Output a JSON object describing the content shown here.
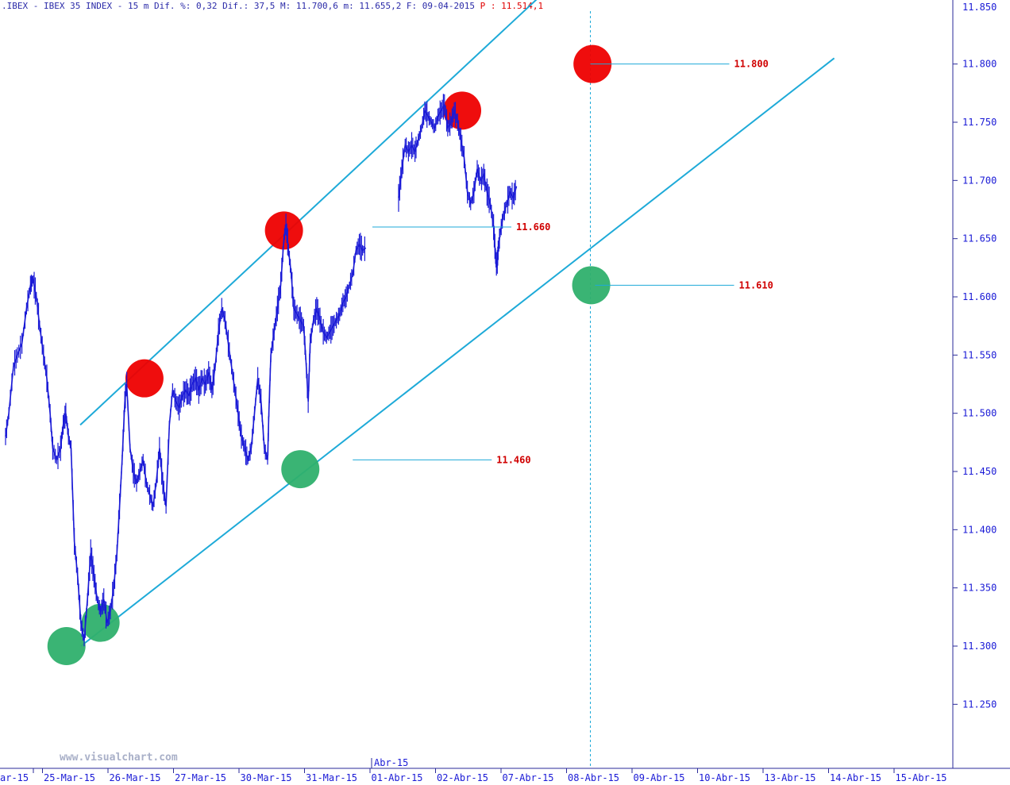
{
  "header": {
    "text": ".IBEX - IBEX 35 INDEX -  15 m Dif. %: 0,32 Dif.: 37,5 M: 11.700,6 m: 11.655,2 F: 09-04-2015",
    "last_price_text": "P : 11.514,1"
  },
  "watermark": "www.visualchart.com",
  "colors": {
    "price": "#1a1ad6",
    "channel": "#1eaad8",
    "resistance": "#ee0000",
    "support": "#2fb06d",
    "axis_text": "#1a1ad6",
    "level_label": "#d00000"
  },
  "chart_data": {
    "type": "line",
    "title": "IBEX 35 INDEX 15 m",
    "x_axis": {
      "labels": [
        "ar-15",
        "25-Mar-15",
        "26-Mar-15",
        "27-Mar-15",
        "30-Mar-15",
        "31-Mar-15",
        "01-Abr-15",
        "02-Abr-15",
        "07-Abr-15",
        "08-Abr-15",
        "09-Abr-15",
        "10-Abr-15",
        "13-Abr-15",
        "14-Abr-15",
        "15-Abr-15"
      ],
      "month_marker": "Abr-15"
    },
    "y_axis": {
      "ticks": [
        "11.250",
        "11.300",
        "11.350",
        "11.400",
        "11.450",
        "11.500",
        "11.550",
        "11.600",
        "11.650",
        "11.700",
        "11.750",
        "11.800"
      ],
      "top_partial": "11.850",
      "range": [
        11195,
        11855
      ]
    },
    "series": [
      {
        "points": [
          [
            0.0,
            11480
          ],
          [
            0.05,
            11500
          ],
          [
            0.12,
            11540
          ],
          [
            0.18,
            11550
          ],
          [
            0.25,
            11560
          ],
          [
            0.32,
            11590
          ],
          [
            0.38,
            11610
          ],
          [
            0.42,
            11615
          ],
          [
            0.47,
            11600
          ],
          [
            0.52,
            11575
          ],
          [
            0.58,
            11550
          ],
          [
            0.63,
            11530
          ],
          [
            0.68,
            11500
          ],
          [
            0.72,
            11470
          ],
          [
            0.78,
            11460
          ],
          [
            0.84,
            11470
          ],
          [
            0.88,
            11490
          ],
          [
            0.92,
            11500
          ],
          [
            0.96,
            11480
          ],
          [
            1.0,
            11470
          ],
          [
            1.05,
            11390
          ],
          [
            1.1,
            11360
          ],
          [
            1.15,
            11320
          ],
          [
            1.2,
            11305
          ],
          [
            1.25,
            11340
          ],
          [
            1.3,
            11380
          ],
          [
            1.35,
            11360
          ],
          [
            1.4,
            11340
          ],
          [
            1.45,
            11330
          ],
          [
            1.5,
            11340
          ],
          [
            1.55,
            11320
          ],
          [
            1.6,
            11330
          ],
          [
            1.65,
            11350
          ],
          [
            1.7,
            11380
          ],
          [
            1.74,
            11420
          ],
          [
            1.78,
            11460
          ],
          [
            1.82,
            11510
          ],
          [
            1.85,
            11525
          ],
          [
            1.9,
            11470
          ],
          [
            1.95,
            11450
          ],
          [
            2.0,
            11440
          ],
          [
            2.05,
            11450
          ],
          [
            2.1,
            11460
          ],
          [
            2.15,
            11440
          ],
          [
            2.2,
            11430
          ],
          [
            2.25,
            11420
          ],
          [
            2.3,
            11440
          ],
          [
            2.35,
            11470
          ],
          [
            2.4,
            11440
          ],
          [
            2.45,
            11420
          ],
          [
            2.5,
            11490
          ],
          [
            2.55,
            11520
          ],
          [
            2.6,
            11510
          ],
          [
            2.65,
            11505
          ],
          [
            2.7,
            11515
          ],
          [
            2.75,
            11520
          ],
          [
            2.8,
            11515
          ],
          [
            2.85,
            11525
          ],
          [
            2.9,
            11530
          ],
          [
            2.95,
            11520
          ],
          [
            3.0,
            11530
          ],
          [
            3.05,
            11525
          ],
          [
            3.1,
            11535
          ],
          [
            3.15,
            11520
          ],
          [
            3.2,
            11540
          ],
          [
            3.25,
            11570
          ],
          [
            3.3,
            11590
          ],
          [
            3.35,
            11580
          ],
          [
            3.4,
            11560
          ],
          [
            3.45,
            11540
          ],
          [
            3.5,
            11520
          ],
          [
            3.55,
            11500
          ],
          [
            3.6,
            11480
          ],
          [
            3.65,
            11470
          ],
          [
            3.7,
            11460
          ],
          [
            3.75,
            11470
          ],
          [
            3.8,
            11500
          ],
          [
            3.85,
            11530
          ],
          [
            3.9,
            11510
          ],
          [
            3.95,
            11470
          ],
          [
            4.0,
            11460
          ],
          [
            4.02,
            11500
          ],
          [
            4.05,
            11550
          ],
          [
            4.1,
            11570
          ],
          [
            4.15,
            11590
          ],
          [
            4.2,
            11610
          ],
          [
            4.25,
            11650
          ],
          [
            4.28,
            11662
          ],
          [
            4.32,
            11640
          ],
          [
            4.36,
            11620
          ],
          [
            4.4,
            11590
          ],
          [
            4.45,
            11585
          ],
          [
            4.5,
            11580
          ],
          [
            4.55,
            11575
          ],
          [
            4.58,
            11550
          ],
          [
            4.62,
            11510
          ],
          [
            4.65,
            11560
          ],
          [
            4.7,
            11580
          ],
          [
            4.75,
            11590
          ],
          [
            4.8,
            11580
          ],
          [
            4.85,
            11570
          ],
          [
            4.9,
            11565
          ],
          [
            4.95,
            11570
          ],
          [
            5.0,
            11575
          ],
          [
            5.05,
            11580
          ],
          [
            5.1,
            11585
          ],
          [
            5.15,
            11595
          ],
          [
            5.2,
            11600
          ],
          [
            5.25,
            11610
          ],
          [
            5.3,
            11620
          ],
          [
            5.35,
            11640
          ],
          [
            5.4,
            11645
          ],
          [
            5.45,
            11640
          ],
          [
            5.5,
            11642
          ],
          [
            6.0,
            11685
          ],
          [
            6.05,
            11710
          ],
          [
            6.1,
            11730
          ],
          [
            6.15,
            11725
          ],
          [
            6.2,
            11730
          ],
          [
            6.25,
            11725
          ],
          [
            6.3,
            11735
          ],
          [
            6.35,
            11745
          ],
          [
            6.4,
            11760
          ],
          [
            6.45,
            11755
          ],
          [
            6.5,
            11750
          ],
          [
            6.55,
            11745
          ],
          [
            6.6,
            11755
          ],
          [
            6.65,
            11760
          ],
          [
            6.7,
            11765
          ],
          [
            6.75,
            11745
          ],
          [
            6.8,
            11750
          ],
          [
            6.85,
            11760
          ],
          [
            6.9,
            11750
          ],
          [
            6.95,
            11735
          ],
          [
            7.0,
            11720
          ],
          [
            7.05,
            11690
          ],
          [
            7.1,
            11680
          ],
          [
            7.15,
            11690
          ],
          [
            7.2,
            11710
          ],
          [
            7.25,
            11700
          ],
          [
            7.3,
            11705
          ],
          [
            7.35,
            11690
          ],
          [
            7.4,
            11680
          ],
          [
            7.45,
            11660
          ],
          [
            7.48,
            11635
          ],
          [
            7.5,
            11625
          ],
          [
            7.52,
            11640
          ],
          [
            7.55,
            11655
          ],
          [
            7.6,
            11670
          ],
          [
            7.65,
            11680
          ],
          [
            7.7,
            11690
          ],
          [
            7.75,
            11685
          ],
          [
            7.8,
            11695
          ]
        ]
      }
    ],
    "channel_lines": [
      {
        "name": "upper",
        "from": [
          1.14,
          11490
        ],
        "to": [
          9.05,
          11905
        ]
      },
      {
        "name": "lower",
        "from": [
          1.15,
          11300
        ],
        "to": [
          12.65,
          11805
        ]
      }
    ],
    "marked_levels": [
      {
        "kind": "resistance",
        "label": "11.800",
        "value": 11800,
        "x": 9.0
      },
      {
        "kind": "resistance",
        "label": "11.660",
        "value": 11660,
        "x": 5.6
      },
      {
        "kind": "support",
        "label": "11.610",
        "value": 11610,
        "x": 9.0
      },
      {
        "kind": "support",
        "label": "11.460",
        "value": 11460,
        "x": 5.3
      }
    ],
    "circles": [
      {
        "kind": "resistance",
        "x": 2.12,
        "y": 11530
      },
      {
        "kind": "resistance",
        "x": 4.25,
        "y": 11657
      },
      {
        "kind": "resistance",
        "x": 6.97,
        "y": 11760
      },
      {
        "kind": "resistance",
        "x": 8.96,
        "y": 11800
      },
      {
        "kind": "support",
        "x": 0.93,
        "y": 11300
      },
      {
        "kind": "support",
        "x": 1.45,
        "y": 11320
      },
      {
        "kind": "support",
        "x": 4.5,
        "y": 11452
      },
      {
        "kind": "support",
        "x": 8.94,
        "y": 11610
      }
    ],
    "cursor_x": 9.0,
    "grid": false
  }
}
